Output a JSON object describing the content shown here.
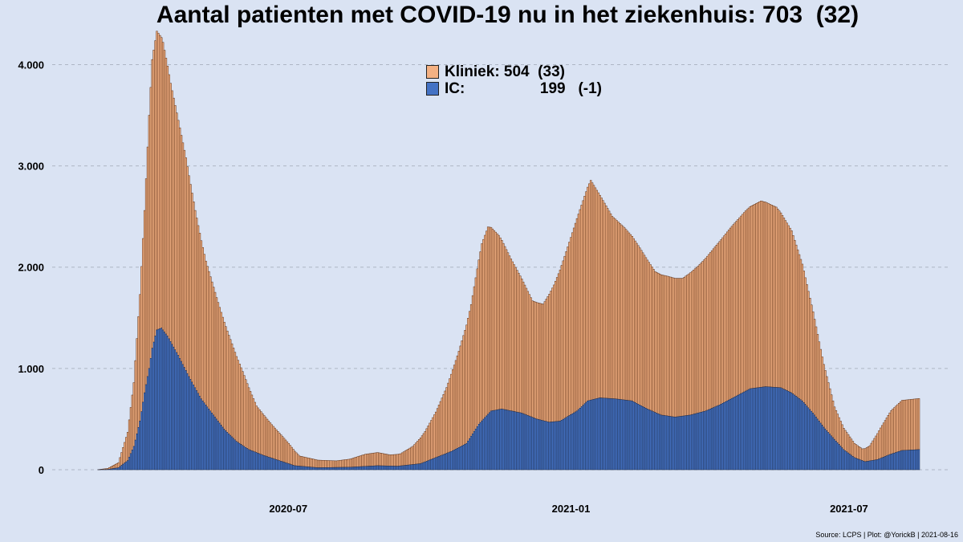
{
  "chart_data": {
    "type": "bar",
    "stacked": true,
    "title": "Aantal patienten met COVID-19 nu in het ziekenhuis: 703  (32)",
    "x_range": [
      "2020-02-27",
      "2021-08-16"
    ],
    "x_ticks": [
      "2020-07",
      "2021-01",
      "2021-07"
    ],
    "ylim": [
      0,
      4400
    ],
    "y_ticks": [
      "0",
      "1.000",
      "2.000",
      "3.000",
      "4.000"
    ],
    "grid": "horizontal dashed",
    "legend_position": "top-center",
    "series": [
      {
        "name": "Kliniek",
        "legend_value": "504  (33)",
        "color": "#f4b183",
        "anchors": [
          [
            "2020-02-27",
            0
          ],
          [
            "2020-03-05",
            10
          ],
          [
            "2020-03-12",
            50
          ],
          [
            "2020-03-18",
            280
          ],
          [
            "2020-03-22",
            630
          ],
          [
            "2020-03-26",
            1250
          ],
          [
            "2020-03-29",
            1800
          ],
          [
            "2020-04-01",
            2500
          ],
          [
            "2020-04-03",
            2850
          ],
          [
            "2020-04-06",
            2950
          ],
          [
            "2020-04-10",
            2840
          ],
          [
            "2020-04-15",
            2550
          ],
          [
            "2020-04-20",
            2320
          ],
          [
            "2020-04-25",
            2100
          ],
          [
            "2020-05-01",
            1750
          ],
          [
            "2020-05-08",
            1420
          ],
          [
            "2020-05-15",
            1200
          ],
          [
            "2020-05-22",
            1000
          ],
          [
            "2020-06-01",
            730
          ],
          [
            "2020-06-10",
            460
          ],
          [
            "2020-06-20",
            330
          ],
          [
            "2020-07-01",
            200
          ],
          [
            "2020-07-08",
            100
          ],
          [
            "2020-07-20",
            75
          ],
          [
            "2020-08-01",
            65
          ],
          [
            "2020-08-10",
            80
          ],
          [
            "2020-08-20",
            120
          ],
          [
            "2020-08-28",
            130
          ],
          [
            "2020-09-05",
            110
          ],
          [
            "2020-09-12",
            120
          ],
          [
            "2020-09-20",
            180
          ],
          [
            "2020-09-28",
            300
          ],
          [
            "2020-10-05",
            450
          ],
          [
            "2020-10-12",
            650
          ],
          [
            "2020-10-20",
            950
          ],
          [
            "2020-10-28",
            1300
          ],
          [
            "2020-11-04",
            1750
          ],
          [
            "2020-11-08",
            1850
          ],
          [
            "2020-11-15",
            1720
          ],
          [
            "2020-11-23",
            1500
          ],
          [
            "2020-12-01",
            1300
          ],
          [
            "2020-12-07",
            1150
          ],
          [
            "2020-12-14",
            1150
          ],
          [
            "2020-12-21",
            1350
          ],
          [
            "2020-12-28",
            1600
          ],
          [
            "2021-01-05",
            1900
          ],
          [
            "2021-01-10",
            2050
          ],
          [
            "2021-01-14",
            2170
          ],
          [
            "2021-01-20",
            2000
          ],
          [
            "2021-01-28",
            1800
          ],
          [
            "2021-02-05",
            1700
          ],
          [
            "2021-02-15",
            1550
          ],
          [
            "2021-02-25",
            1390
          ],
          [
            "2021-03-05",
            1380
          ],
          [
            "2021-03-15",
            1360
          ],
          [
            "2021-03-25",
            1450
          ],
          [
            "2021-04-05",
            1580
          ],
          [
            "2021-04-15",
            1690
          ],
          [
            "2021-04-25",
            1780
          ],
          [
            "2021-05-05",
            1840
          ],
          [
            "2021-05-15",
            1780
          ],
          [
            "2021-05-25",
            1600
          ],
          [
            "2021-06-01",
            1350
          ],
          [
            "2021-06-08",
            1000
          ],
          [
            "2021-06-15",
            620
          ],
          [
            "2021-06-22",
            320
          ],
          [
            "2021-06-28",
            210
          ],
          [
            "2021-07-05",
            140
          ],
          [
            "2021-07-10",
            115
          ],
          [
            "2021-07-15",
            150
          ],
          [
            "2021-07-22",
            300
          ],
          [
            "2021-07-29",
            430
          ],
          [
            "2021-08-05",
            495
          ],
          [
            "2021-08-16",
            504
          ]
        ]
      },
      {
        "name": "IC",
        "legend_value": "199   (-1)",
        "color": "#4472c4",
        "anchors": [
          [
            "2020-02-27",
            0
          ],
          [
            "2020-03-05",
            3
          ],
          [
            "2020-03-12",
            20
          ],
          [
            "2020-03-18",
            90
          ],
          [
            "2020-03-22",
            230
          ],
          [
            "2020-03-26",
            480
          ],
          [
            "2020-03-29",
            760
          ],
          [
            "2020-04-01",
            1000
          ],
          [
            "2020-04-03",
            1200
          ],
          [
            "2020-04-06",
            1380
          ],
          [
            "2020-04-09",
            1400
          ],
          [
            "2020-04-13",
            1320
          ],
          [
            "2020-04-20",
            1130
          ],
          [
            "2020-04-27",
            920
          ],
          [
            "2020-05-05",
            700
          ],
          [
            "2020-05-12",
            560
          ],
          [
            "2020-05-20",
            400
          ],
          [
            "2020-05-28",
            280
          ],
          [
            "2020-06-05",
            200
          ],
          [
            "2020-06-15",
            140
          ],
          [
            "2020-06-25",
            90
          ],
          [
            "2020-07-05",
            40
          ],
          [
            "2020-07-20",
            20
          ],
          [
            "2020-08-10",
            25
          ],
          [
            "2020-08-28",
            40
          ],
          [
            "2020-09-10",
            35
          ],
          [
            "2020-09-25",
            60
          ],
          [
            "2020-10-05",
            120
          ],
          [
            "2020-10-15",
            180
          ],
          [
            "2020-10-25",
            260
          ],
          [
            "2020-11-02",
            450
          ],
          [
            "2020-11-10",
            580
          ],
          [
            "2020-11-17",
            600
          ],
          [
            "2020-11-30",
            560
          ],
          [
            "2020-12-10",
            500
          ],
          [
            "2020-12-18",
            470
          ],
          [
            "2020-12-25",
            480
          ],
          [
            "2021-01-05",
            580
          ],
          [
            "2021-01-12",
            680
          ],
          [
            "2021-01-20",
            710
          ],
          [
            "2021-01-30",
            700
          ],
          [
            "2021-02-10",
            680
          ],
          [
            "2021-02-20",
            600
          ],
          [
            "2021-03-01",
            540
          ],
          [
            "2021-03-10",
            520
          ],
          [
            "2021-03-20",
            540
          ],
          [
            "2021-03-30",
            580
          ],
          [
            "2021-04-08",
            640
          ],
          [
            "2021-04-18",
            720
          ],
          [
            "2021-04-28",
            800
          ],
          [
            "2021-05-08",
            820
          ],
          [
            "2021-05-18",
            810
          ],
          [
            "2021-05-25",
            760
          ],
          [
            "2021-06-01",
            680
          ],
          [
            "2021-06-08",
            560
          ],
          [
            "2021-06-15",
            420
          ],
          [
            "2021-06-22",
            300
          ],
          [
            "2021-06-28",
            200
          ],
          [
            "2021-07-05",
            120
          ],
          [
            "2021-07-12",
            80
          ],
          [
            "2021-07-20",
            100
          ],
          [
            "2021-07-28",
            150
          ],
          [
            "2021-08-05",
            190
          ],
          [
            "2021-08-16",
            199
          ]
        ]
      }
    ]
  },
  "source_text": "Source: LCPS | Plot: @YorickB |  2021-08-16"
}
